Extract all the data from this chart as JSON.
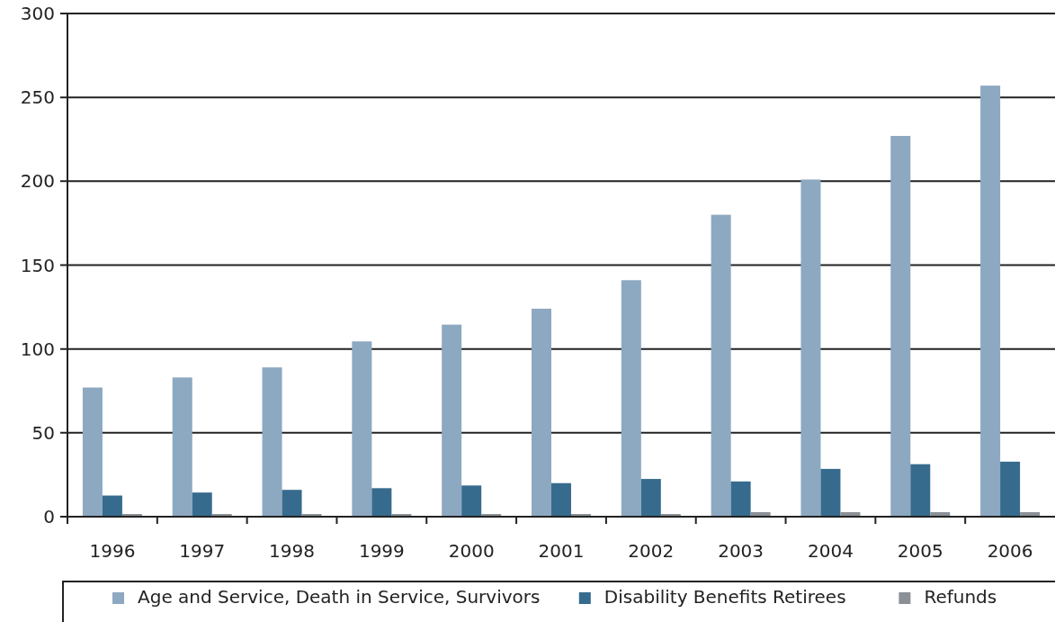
{
  "chart_data": {
    "type": "bar",
    "categories": [
      "1996",
      "1997",
      "1998",
      "1999",
      "2000",
      "2001",
      "2002",
      "2003",
      "2004",
      "2005",
      "2006"
    ],
    "series": [
      {
        "name": "Age and Service, Death in Service, Survivors",
        "color": "#8da8c1",
        "values": [
          77,
          83,
          89,
          104.5,
          114.5,
          124,
          141,
          180,
          201,
          227,
          257
        ]
      },
      {
        "name": "Disability Benefits Retirees",
        "color": "#376b8e",
        "values": [
          12.6,
          14.4,
          16,
          17,
          18.6,
          20,
          22.5,
          21,
          28.5,
          31.3,
          32.8
        ]
      },
      {
        "name": "Refunds",
        "color": "#8a9096",
        "values": [
          1.6,
          1.6,
          1.6,
          1.6,
          1.6,
          1.6,
          1.6,
          2.7,
          2.7,
          2.7,
          2.7
        ]
      }
    ],
    "ylim": [
      0,
      300
    ],
    "yticks": [
      0,
      50,
      100,
      150,
      200,
      250,
      300
    ],
    "grid": "y",
    "legend": "bottom"
  }
}
